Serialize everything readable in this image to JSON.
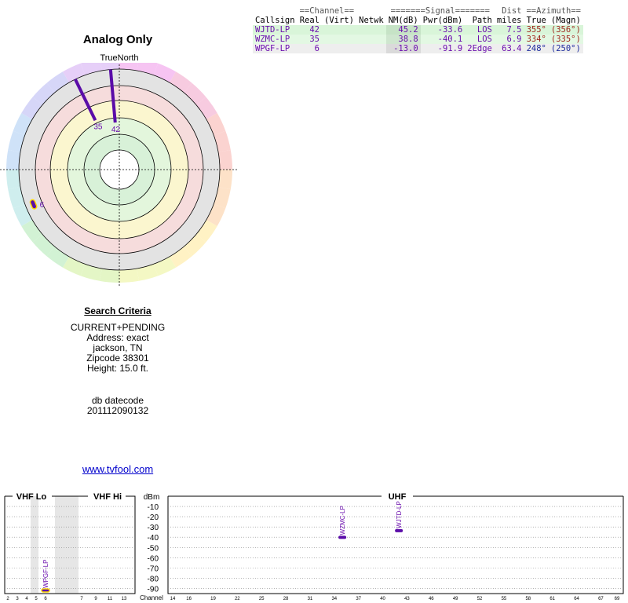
{
  "title": "Analog Only",
  "true_north_label": "TrueNorth",
  "north_letter": "N",
  "table": {
    "group_headers": [
      "==Channel==",
      "=======Signal=======",
      "Dist",
      "==Azimuth=="
    ],
    "headers": [
      "Callsign",
      "Real",
      "(Virt)",
      "Netwk",
      "NM(dB)",
      "Pwr(dBm)",
      "Path",
      "miles",
      "True",
      "(Magn)"
    ],
    "rows": [
      {
        "callsign": "WJTD-LP",
        "real": "42",
        "virt": "",
        "netwk": "",
        "nm": "45.2",
        "pwr": "-33.6",
        "path": "LOS",
        "dist": "7.5",
        "az_true": "355°",
        "az_magn": "(356°)",
        "bg": "#d9f5d9",
        "nmbg": "#c6e3c6",
        "azcolor": "#a0281e"
      },
      {
        "callsign": "WZMC-LP",
        "real": "35",
        "virt": "",
        "netwk": "",
        "nm": "38.8",
        "pwr": "-40.1",
        "path": "LOS",
        "dist": "6.9",
        "az_true": "334°",
        "az_magn": "(335°)",
        "bg": "#e3f8e3",
        "nmbg": "#cfe6cf",
        "azcolor": "#a0281e"
      },
      {
        "callsign": "WPGF-LP",
        "real": "6",
        "virt": "",
        "netwk": "",
        "nm": "-13.0",
        "pwr": "-91.9",
        "path": "2Edge",
        "dist": "63.4",
        "az_true": "248°",
        "az_magn": "(250°)",
        "bg": "#eeeeee",
        "nmbg": "#dadada",
        "azcolor": "#1c2a9c"
      }
    ]
  },
  "search_criteria": {
    "heading": "Search Criteria",
    "lines": [
      "CURRENT+PENDING",
      "Address: exact",
      "jackson, TN",
      "Zipcode 38301",
      "Height: 15.0 ft."
    ],
    "db_label": "db datecode",
    "db_value": "201112090132"
  },
  "site_link": "www.tvfool.com",
  "colors": {
    "station_line": "#5a0ca8",
    "station_label": "#6a0dad",
    "vhf_marker": "#ffd700"
  },
  "chart_data": [
    {
      "type": "polar",
      "title": "Analog Only",
      "stations": [
        {
          "label": "42",
          "azimuth": 355,
          "nm_db": 45.2,
          "band": "UHF"
        },
        {
          "label": "35",
          "azimuth": 334,
          "nm_db": 38.8,
          "band": "UHF"
        },
        {
          "label": "6",
          "azimuth": 248,
          "nm_db": -13.0,
          "band": "VHF"
        }
      ]
    },
    {
      "type": "scatter",
      "ylabel": "dBm",
      "xlabel": "Channel",
      "ylim": [
        -95,
        0
      ],
      "yticks": [
        -10,
        -20,
        -30,
        -40,
        -50,
        -60,
        -70,
        -80,
        -90
      ],
      "band_labels": [
        "VHF Lo",
        "VHF Hi",
        "UHF"
      ],
      "vhf_lo_ticks": [
        "2",
        "3",
        "4",
        "5",
        "6"
      ],
      "vhf_hi_ticks": [
        "7",
        "9",
        "11",
        "13"
      ],
      "uhf_ticks": [
        "14",
        "16",
        "19",
        "22",
        "25",
        "28",
        "31",
        "34",
        "37",
        "40",
        "43",
        "46",
        "49",
        "52",
        "55",
        "58",
        "61",
        "64",
        "67",
        "69"
      ],
      "points": [
        {
          "callsign": "WPGF-LP",
          "channel": 6,
          "dbm": -91.9
        },
        {
          "callsign": "WZMC-LP",
          "channel": 35,
          "dbm": -40.1
        },
        {
          "callsign": "WJTD-LP",
          "channel": 42,
          "dbm": -33.6
        }
      ]
    }
  ]
}
